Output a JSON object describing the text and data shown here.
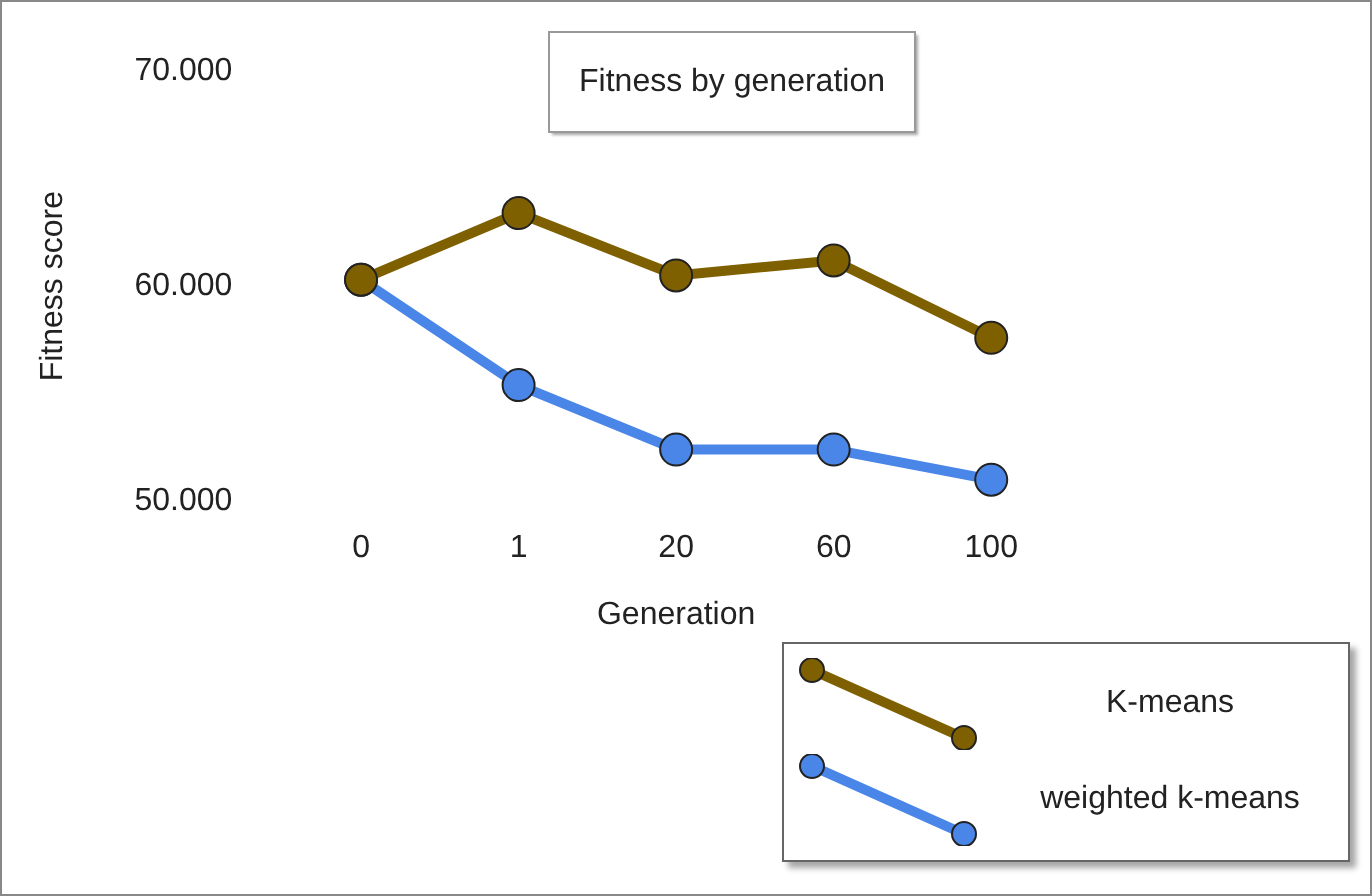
{
  "chart_data": {
    "type": "line",
    "title": "Fitness by generation",
    "xlabel": "Generation",
    "ylabel": "Fitness score",
    "categories": [
      "0",
      "1",
      "20",
      "60",
      "100"
    ],
    "series": [
      {
        "name": "K-means",
        "color": "#7f6000",
        "values": [
          60300,
          63400,
          60500,
          61200,
          57600
        ]
      },
      {
        "name": "weighted k-means",
        "color": "#4a86e8",
        "values": [
          60300,
          55400,
          52400,
          52400,
          51000
        ]
      }
    ],
    "ylim": [
      50000,
      70000
    ],
    "yticks": [
      {
        "value": 50000,
        "label": "50.000"
      },
      {
        "value": 60000,
        "label": "60.000"
      },
      {
        "value": 70000,
        "label": "70.000"
      }
    ],
    "grid": false,
    "legend": "bottom right",
    "marker": "circle",
    "line_style": "solid"
  }
}
